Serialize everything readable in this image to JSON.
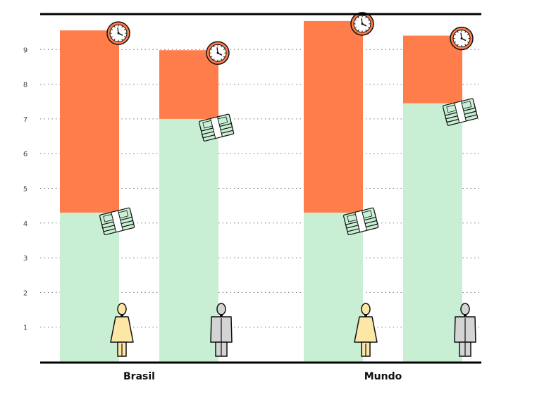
{
  "chart_data": {
    "type": "bar",
    "stacked": true,
    "categories": [
      "Brasil",
      "Mundo"
    ],
    "groups": [
      {
        "label": "Brasil",
        "bars": [
          {
            "figure": "woman-icon",
            "paid": 4.3,
            "total": 9.55
          },
          {
            "figure": "man-icon",
            "paid": 7.0,
            "total": 8.98
          }
        ]
      },
      {
        "label": "Mundo",
        "bars": [
          {
            "figure": "woman-icon",
            "paid": 4.3,
            "total": 9.82
          },
          {
            "figure": "man-icon",
            "paid": 7.45,
            "total": 9.4
          }
        ]
      }
    ],
    "ylim": [
      0,
      9.9
    ],
    "yticks": [
      1,
      2,
      3,
      4,
      5,
      6,
      7,
      8,
      9
    ],
    "grid": true,
    "colors": {
      "paid": "#c8efd4",
      "unpaid": "#ff7d4a",
      "woman": "#fde7a6",
      "man": "#d4d4d4",
      "axis": "#000000",
      "clock": "#ff7d4a",
      "money": "#c8efd4"
    }
  }
}
